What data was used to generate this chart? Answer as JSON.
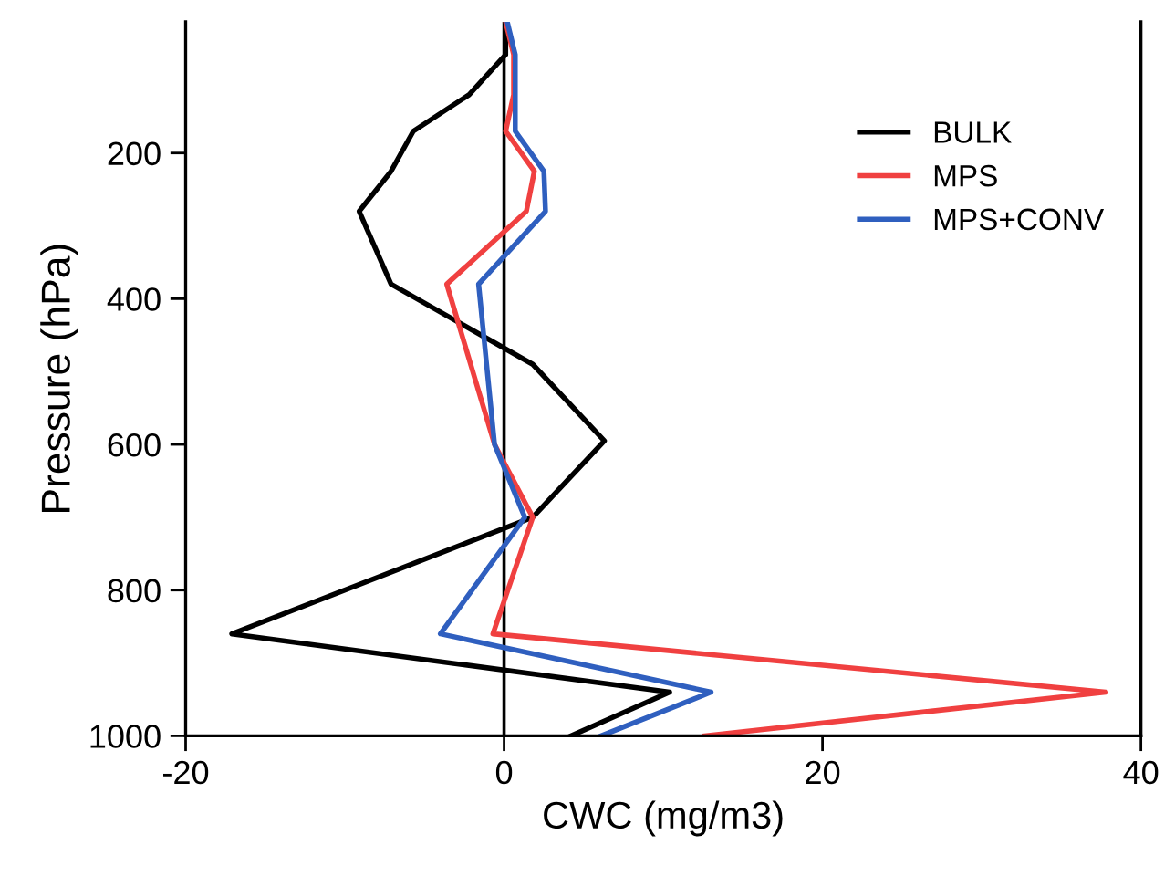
{
  "chart_data": {
    "type": "line",
    "xlabel": "CWC (mg/m3)",
    "ylabel": "Pressure (hPa)",
    "xlim": [
      -20,
      40
    ],
    "xticks": [
      -20,
      0,
      20,
      40
    ],
    "ylim": [
      1000,
      20
    ],
    "yticks": [
      200,
      400,
      600,
      800,
      1000
    ],
    "grid": false,
    "legend": "top right",
    "marker": "none",
    "line_style": "solid",
    "ref_lines": [
      {
        "axis": "x",
        "value": 0,
        "color": "#000000"
      }
    ],
    "series": [
      {
        "name": "BULK",
        "color": "#000000",
        "x": [
          0.1,
          0.1,
          -2.2,
          -5.7,
          -7.1,
          -9.1,
          -7.1,
          1.8,
          6.3,
          1.8,
          -17.1,
          10.4,
          4.2
        ],
        "values": [
          20,
          65,
          120,
          170,
          225,
          280,
          380,
          490,
          595,
          700,
          860,
          940,
          1000
        ]
      },
      {
        "name": "MPS",
        "color": "#f04040",
        "x": [
          0.1,
          0.6,
          0.6,
          0.1,
          1.9,
          1.4,
          -3.6,
          -0.6,
          1.8,
          -0.7,
          37.8,
          12.6
        ],
        "values": [
          20,
          65,
          120,
          170,
          225,
          280,
          380,
          600,
          700,
          860,
          940,
          1000
        ]
      },
      {
        "name": "MPS+CONV",
        "color": "#2f5fbf",
        "x": [
          0.2,
          0.7,
          0.7,
          0.7,
          2.5,
          2.6,
          -1.6,
          -0.6,
          1.3,
          -4.0,
          13.0,
          6.1
        ],
        "values": [
          20,
          65,
          120,
          170,
          225,
          280,
          380,
          600,
          700,
          860,
          940,
          1000
        ]
      }
    ]
  }
}
